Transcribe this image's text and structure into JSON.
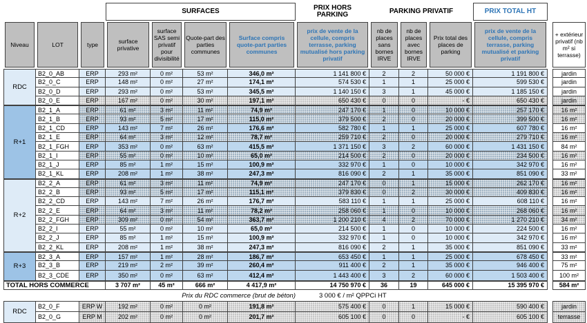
{
  "colors": {
    "accent_blue": "#2E75B6",
    "header_gray": "#BFBFBF",
    "row_light_blue": "#DEEBF7",
    "row_mid_blue": "#BDD7EE",
    "level_mid_blue": "#9DC3E6",
    "border": "#3f3f3f"
  },
  "title_groups": {
    "surfaces": "SURFACES",
    "prix_hors_parking": "PRIX HORS PARKING",
    "parking_privatif": "PARKING PRIVATIF",
    "prix_total_ht": "PRIX TOTAL HT"
  },
  "columns": {
    "niveau": "Niveau",
    "lot": "LOT",
    "type": "type",
    "surface_privative": "surface privative",
    "sas": "surface SAS semi privatif pour divisibilité",
    "quote_part": "Quote-part des parties communes",
    "surface_totale": "Surface compris quote-part parties communes",
    "prix_hors_parking": "prix de vente de la cellule, compris terrasse, parking mutualisé hors parking privatif",
    "nb_sans": "nb de places sans bornes IRVE",
    "nb_avec": "nb de places avec bornes IRVE",
    "prix_places": "Prix total des places de parking",
    "prix_total": "prix de vente de la cellule, compris terrasse, parking mutualisé et parking privatif",
    "exterieur": "+ extérieur privatif (nb m² si terrasse)"
  },
  "table": {
    "groups": [
      {
        "label": "RDC",
        "level_class": "lv-light",
        "row_class": "row-light",
        "hatch_class": "hatch-gray",
        "rows": [
          {
            "lot": "B2_0_AB",
            "type": "ERP",
            "s_priv": "293 m²",
            "sas": "0 m²",
            "qp": "53 m²",
            "s_total": "346,0 m²",
            "prix": "1 141 800 €",
            "nb_sans": "2",
            "nb_avec": "2",
            "prix_places": "50 000 €",
            "total": "1 191 800 €",
            "ext": "jardin",
            "hatched": false
          },
          {
            "lot": "B2_0_C",
            "type": "ERP",
            "s_priv": "148 m²",
            "sas": "0 m²",
            "qp": "27 m²",
            "s_total": "174,1 m²",
            "prix": "574 530 €",
            "nb_sans": "1",
            "nb_avec": "1",
            "prix_places": "25 000 €",
            "total": "599 530 €",
            "ext": "jardin",
            "hatched": false
          },
          {
            "lot": "B2_0_D",
            "type": "ERP",
            "s_priv": "293 m²",
            "sas": "0 m²",
            "qp": "53 m²",
            "s_total": "345,5 m²",
            "prix": "1 140 150 €",
            "nb_sans": "3",
            "nb_avec": "1",
            "prix_places": "45 000 €",
            "total": "1 185 150 €",
            "ext": "jardin",
            "hatched": false
          },
          {
            "lot": "B2_0_E",
            "type": "ERP",
            "s_priv": "167 m²",
            "sas": "0 m²",
            "qp": "30 m²",
            "s_total": "197,1 m²",
            "prix": "650 430 €",
            "nb_sans": "0",
            "nb_avec": "0",
            "prix_places": "-   €",
            "total": "650 430 €",
            "ext": "jardin",
            "hatched": true
          }
        ]
      },
      {
        "label": "R+1",
        "level_class": "lv-mid",
        "row_class": "row-mid",
        "hatch_class": "hatch-blue",
        "rows": [
          {
            "lot": "B2_1_A",
            "type": "ERP",
            "s_priv": "61 m²",
            "sas": "3 m²",
            "qp": "11 m²",
            "s_total": "74,9 m²",
            "prix": "247 170 €",
            "nb_sans": "1",
            "nb_avec": "0",
            "prix_places": "10 000 €",
            "total": "257 170 €",
            "ext": "16 m²",
            "hatched": true
          },
          {
            "lot": "B2_1_B",
            "type": "ERP",
            "s_priv": "93 m²",
            "sas": "5 m²",
            "qp": "17 m²",
            "s_total": "115,0 m²",
            "prix": "379 500 €",
            "nb_sans": "2",
            "nb_avec": "0",
            "prix_places": "20 000 €",
            "total": "399 500 €",
            "ext": "16 m²",
            "hatched": true
          },
          {
            "lot": "B2_1_CD",
            "type": "ERP",
            "s_priv": "143 m²",
            "sas": "7 m²",
            "qp": "26 m²",
            "s_total": "176,6 m²",
            "prix": "582 780 €",
            "nb_sans": "1",
            "nb_avec": "1",
            "prix_places": "25 000 €",
            "total": "607 780 €",
            "ext": "16 m²",
            "hatched": false
          },
          {
            "lot": "B2_1_E",
            "type": "ERP",
            "s_priv": "64 m²",
            "sas": "3 m²",
            "qp": "12 m²",
            "s_total": "78,7 m²",
            "prix": "259 710 €",
            "nb_sans": "2",
            "nb_avec": "0",
            "prix_places": "20 000 €",
            "total": "279 710 €",
            "ext": "16 m²",
            "hatched": true
          },
          {
            "lot": "B2_1_FGH",
            "type": "ERP",
            "s_priv": "353 m²",
            "sas": "0 m²",
            "qp": "63 m²",
            "s_total": "415,5 m²",
            "prix": "1 371 150 €",
            "nb_sans": "3",
            "nb_avec": "2",
            "prix_places": "60 000 €",
            "total": "1 431 150 €",
            "ext": "84 m²",
            "hatched": false
          },
          {
            "lot": "B2_1_I",
            "type": "ERP",
            "s_priv": "55 m²",
            "sas": "0 m²",
            "qp": "10 m²",
            "s_total": "65,0 m²",
            "prix": "214 500 €",
            "nb_sans": "2",
            "nb_avec": "0",
            "prix_places": "20 000 €",
            "total": "234 500 €",
            "ext": "16 m²",
            "hatched": true
          },
          {
            "lot": "B2_1_J",
            "type": "ERP",
            "s_priv": "85 m²",
            "sas": "1 m²",
            "qp": "15 m²",
            "s_total": "100,9 m²",
            "prix": "332 970 €",
            "nb_sans": "1",
            "nb_avec": "0",
            "prix_places": "10 000 €",
            "total": "342 970 €",
            "ext": "16 m²",
            "hatched": false
          },
          {
            "lot": "B2_1_KL",
            "type": "ERP",
            "s_priv": "208 m²",
            "sas": "1 m²",
            "qp": "38 m²",
            "s_total": "247,3 m²",
            "prix": "816 090 €",
            "nb_sans": "2",
            "nb_avec": "1",
            "prix_places": "35 000 €",
            "total": "851 090 €",
            "ext": "33 m²",
            "hatched": false
          }
        ]
      },
      {
        "label": "R+2",
        "level_class": "lv-light",
        "row_class": "row-light",
        "hatch_class": "hatch-blue",
        "rows": [
          {
            "lot": "B2_2_A",
            "type": "ERP",
            "s_priv": "61 m²",
            "sas": "3 m²",
            "qp": "11 m²",
            "s_total": "74,9 m²",
            "prix": "247 170 €",
            "nb_sans": "0",
            "nb_avec": "1",
            "prix_places": "15 000 €",
            "total": "262 170 €",
            "ext": "16 m²",
            "hatched": true
          },
          {
            "lot": "B2_2_B",
            "type": "ERP",
            "s_priv": "93 m²",
            "sas": "5 m²",
            "qp": "17 m²",
            "s_total": "115,1 m²",
            "prix": "379 830 €",
            "nb_sans": "0",
            "nb_avec": "2",
            "prix_places": "30 000 €",
            "total": "409 830 €",
            "ext": "16 m²",
            "hatched": true
          },
          {
            "lot": "B2_2_CD",
            "type": "ERP",
            "s_priv": "143 m²",
            "sas": "7 m²",
            "qp": "26 m²",
            "s_total": "176,7 m²",
            "prix": "583 110 €",
            "nb_sans": "1",
            "nb_avec": "1",
            "prix_places": "25 000 €",
            "total": "608 110 €",
            "ext": "16 m²",
            "hatched": false
          },
          {
            "lot": "B2_2_E",
            "type": "ERP",
            "s_priv": "64 m²",
            "sas": "3 m²",
            "qp": "11 m²",
            "s_total": "78,2 m²",
            "prix": "258 060 €",
            "nb_sans": "1",
            "nb_avec": "0",
            "prix_places": "10 000 €",
            "total": "268 060 €",
            "ext": "16 m²",
            "hatched": true
          },
          {
            "lot": "B2_2_FGH",
            "type": "ERP",
            "s_priv": "309 m²",
            "sas": "0 m²",
            "qp": "54 m²",
            "s_total": "363,7 m²",
            "prix": "1 200 210 €",
            "nb_sans": "4",
            "nb_avec": "2",
            "prix_places": "70 000 €",
            "total": "1 270 210 €",
            "ext": "34 m²",
            "hatched": true
          },
          {
            "lot": "B2_2_I",
            "type": "ERP",
            "s_priv": "55 m²",
            "sas": "0 m²",
            "qp": "10 m²",
            "s_total": "65,0 m²",
            "prix": "214 500 €",
            "nb_sans": "1",
            "nb_avec": "0",
            "prix_places": "10 000 €",
            "total": "224 500 €",
            "ext": "16 m²",
            "hatched": false
          },
          {
            "lot": "B2_2_J",
            "type": "ERP",
            "s_priv": "85 m²",
            "sas": "1 m²",
            "qp": "15 m²",
            "s_total": "100,9 m²",
            "prix": "332 970 €",
            "nb_sans": "1",
            "nb_avec": "0",
            "prix_places": "10 000 €",
            "total": "342 970 €",
            "ext": "16 m²",
            "hatched": false
          },
          {
            "lot": "B2_2_KL",
            "type": "ERP",
            "s_priv": "208 m²",
            "sas": "1 m²",
            "qp": "38 m²",
            "s_total": "247,3 m²",
            "prix": "816 090 €",
            "nb_sans": "2",
            "nb_avec": "1",
            "prix_places": "35 000 €",
            "total": "851 090 €",
            "ext": "33 m²",
            "hatched": false
          }
        ]
      },
      {
        "label": "R+3",
        "level_class": "lv-mid",
        "row_class": "row-mid",
        "hatch_class": "hatch-blue",
        "rows": [
          {
            "lot": "B2_3_A",
            "type": "ERP",
            "s_priv": "157 m²",
            "sas": "1 m²",
            "qp": "28 m²",
            "s_total": "186,7 m²",
            "prix": "653 450 €",
            "nb_sans": "1",
            "nb_avec": "1",
            "prix_places": "25 000 €",
            "total": "678 450 €",
            "ext": "33 m²",
            "hatched": false
          },
          {
            "lot": "B2_3_B",
            "type": "ERP",
            "s_priv": "219 m²",
            "sas": "2 m²",
            "qp": "39 m²",
            "s_total": "260,4 m²",
            "prix": "911 400 €",
            "nb_sans": "2",
            "nb_avec": "1",
            "prix_places": "35 000 €",
            "total": "946 400 €",
            "ext": "75 m²",
            "hatched": false
          },
          {
            "lot": "B2_3_CDE",
            "type": "ERP",
            "s_priv": "350 m²",
            "sas": "0 m²",
            "qp": "63 m²",
            "s_total": "412,4 m²",
            "prix": "1 443 400 €",
            "nb_sans": "3",
            "nb_avec": "2",
            "prix_places": "60 000 €",
            "total": "1 503 400 €",
            "ext": "100 m²",
            "hatched": false
          }
        ]
      }
    ],
    "total": {
      "label": "TOTAL HORS COMMERCE",
      "s_priv": "3 707 m²",
      "sas": "45 m²",
      "qp": "666 m²",
      "s_total": "4 417,9 m²",
      "prix": "14 750 970 €",
      "nb_sans": "36",
      "nb_avec": "19",
      "prix_places": "645 000 €",
      "total": "15 395 970 €",
      "ext": "584 m²"
    }
  },
  "commerce": {
    "note_italic": "Prix du RDC commerce (brut de béton)",
    "note_value": "3 000 €  / m² QPPCi HT",
    "group_label": "RDC",
    "rows": [
      {
        "lot": "B2_0_F",
        "type": "ERP W",
        "s_priv": "192 m²",
        "sas": "0 m²",
        "qp": "0 m²",
        "s_total": "191,8 m²",
        "prix": "575 400 €",
        "nb_sans": "0",
        "nb_avec": "1",
        "prix_places": "15 000 €",
        "total": "590 400 €",
        "ext": "jardin",
        "hatched": true
      },
      {
        "lot": "B2_0_G",
        "type": "ERP M",
        "s_priv": "202 m²",
        "sas": "0 m²",
        "qp": "0 m²",
        "s_total": "201,7 m²",
        "prix": "605 100 €",
        "nb_sans": "0",
        "nb_avec": "0",
        "prix_places": "-   €",
        "total": "605 100 €",
        "ext": "terrasse",
        "hatched": true
      }
    ]
  }
}
